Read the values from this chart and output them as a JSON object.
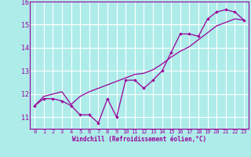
{
  "xlabel": "Windchill (Refroidissement éolien,°C)",
  "background_color": "#aeecea",
  "grid_color": "#ffffff",
  "line_color": "#990099",
  "x_data": [
    0,
    1,
    2,
    3,
    4,
    5,
    6,
    7,
    8,
    9,
    10,
    11,
    12,
    13,
    14,
    15,
    16,
    17,
    18,
    19,
    20,
    21,
    22,
    23
  ],
  "y1_data": [
    11.5,
    11.8,
    11.8,
    11.7,
    11.5,
    11.1,
    11.1,
    10.75,
    11.8,
    11.0,
    12.6,
    12.6,
    12.25,
    12.6,
    13.0,
    13.8,
    14.6,
    14.6,
    14.5,
    15.25,
    15.55,
    15.65,
    15.55,
    15.2
  ],
  "y2_data": [
    11.5,
    11.9,
    12.0,
    12.1,
    11.55,
    11.9,
    12.1,
    12.25,
    12.4,
    12.55,
    12.7,
    12.85,
    12.9,
    13.05,
    13.3,
    13.6,
    13.85,
    14.05,
    14.35,
    14.65,
    14.95,
    15.1,
    15.25,
    15.2
  ],
  "xlim": [
    -0.5,
    23.5
  ],
  "ylim": [
    10.5,
    16.0
  ],
  "yticks": [
    11,
    12,
    13,
    14,
    15,
    16
  ],
  "xticks": [
    0,
    1,
    2,
    3,
    4,
    5,
    6,
    7,
    8,
    9,
    10,
    11,
    12,
    13,
    14,
    15,
    16,
    17,
    18,
    19,
    20,
    21,
    22,
    23
  ]
}
